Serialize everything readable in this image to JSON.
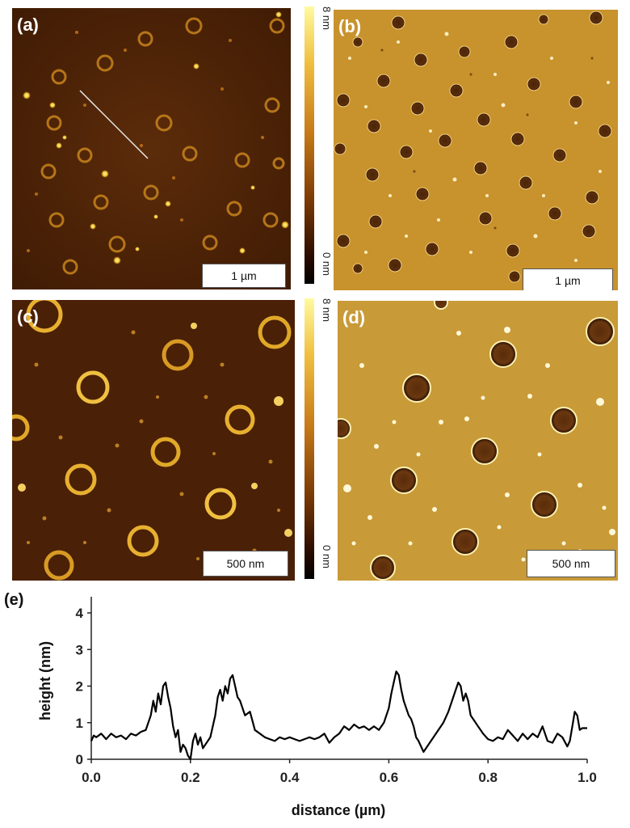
{
  "panels": {
    "a": {
      "label": "(a)",
      "scalebar": "1 µm"
    },
    "b": {
      "label": "(b)",
      "scalebar": "1 µm"
    },
    "c": {
      "label": "(c)",
      "scalebar": "500 nm"
    },
    "d": {
      "label": "(d)",
      "scalebar": "500 nm"
    }
  },
  "colorbars": {
    "top": {
      "max_label": "8 nm",
      "min_label": "0 nm"
    },
    "bottom": {
      "max_label": "8 nm",
      "min_label": "0 nm"
    }
  },
  "colors": {
    "height_map_bg": "#5a2a08",
    "amplitude_bg": "#c8922c",
    "line": "#000000"
  },
  "chart_data": {
    "type": "line",
    "panel_label": "(e)",
    "xlabel": "distance (µm)",
    "ylabel": "height (nm)",
    "xlim": [
      0,
      1.0
    ],
    "ylim": [
      0,
      4
    ],
    "xticks": [
      "0.0",
      "0.2",
      "0.4",
      "0.6",
      "0.8",
      "1.0"
    ],
    "yticks": [
      "0",
      "1",
      "2",
      "3",
      "4"
    ],
    "grid": false,
    "series": [
      {
        "x": [
          0.0,
          0.005,
          0.01,
          0.02,
          0.03,
          0.04,
          0.05,
          0.06,
          0.07,
          0.08,
          0.09,
          0.1,
          0.11,
          0.12,
          0.125,
          0.13,
          0.135,
          0.14,
          0.145,
          0.15,
          0.155,
          0.16,
          0.165,
          0.17,
          0.175,
          0.18,
          0.185,
          0.19,
          0.195,
          0.2,
          0.205,
          0.21,
          0.215,
          0.22,
          0.225,
          0.23,
          0.24,
          0.25,
          0.255,
          0.26,
          0.265,
          0.27,
          0.275,
          0.28,
          0.285,
          0.29,
          0.295,
          0.3,
          0.31,
          0.32,
          0.33,
          0.34,
          0.35,
          0.36,
          0.37,
          0.38,
          0.39,
          0.4,
          0.41,
          0.42,
          0.43,
          0.44,
          0.45,
          0.46,
          0.47,
          0.48,
          0.49,
          0.5,
          0.51,
          0.52,
          0.53,
          0.54,
          0.55,
          0.56,
          0.57,
          0.58,
          0.59,
          0.6,
          0.605,
          0.61,
          0.615,
          0.62,
          0.625,
          0.63,
          0.635,
          0.64,
          0.645,
          0.65,
          0.655,
          0.66,
          0.67,
          0.68,
          0.69,
          0.7,
          0.71,
          0.72,
          0.73,
          0.735,
          0.74,
          0.745,
          0.75,
          0.755,
          0.76,
          0.765,
          0.77,
          0.78,
          0.79,
          0.8,
          0.81,
          0.82,
          0.83,
          0.84,
          0.85,
          0.86,
          0.87,
          0.88,
          0.89,
          0.9,
          0.91,
          0.92,
          0.93,
          0.94,
          0.95,
          0.96,
          0.965,
          0.97,
          0.975,
          0.98,
          0.985,
          0.99,
          1.0
        ],
        "y": [
          0.5,
          0.65,
          0.6,
          0.7,
          0.55,
          0.7,
          0.6,
          0.65,
          0.55,
          0.7,
          0.65,
          0.75,
          0.8,
          1.2,
          1.6,
          1.3,
          1.8,
          1.5,
          2.0,
          2.1,
          1.7,
          1.4,
          0.9,
          0.6,
          0.8,
          0.2,
          0.4,
          0.3,
          0.1,
          0.0,
          0.5,
          0.7,
          0.4,
          0.6,
          0.3,
          0.4,
          0.6,
          1.2,
          1.7,
          1.9,
          1.6,
          2.0,
          1.8,
          2.2,
          2.3,
          2.0,
          1.7,
          1.6,
          1.2,
          1.3,
          0.8,
          0.7,
          0.6,
          0.55,
          0.5,
          0.6,
          0.55,
          0.6,
          0.55,
          0.5,
          0.55,
          0.6,
          0.55,
          0.6,
          0.7,
          0.45,
          0.6,
          0.7,
          0.9,
          0.8,
          0.95,
          0.85,
          0.9,
          0.8,
          0.9,
          0.8,
          1.0,
          1.4,
          1.8,
          2.1,
          2.4,
          2.3,
          1.9,
          1.6,
          1.4,
          1.2,
          1.1,
          0.9,
          0.6,
          0.5,
          0.2,
          0.4,
          0.6,
          0.8,
          1.0,
          1.3,
          1.7,
          1.9,
          2.1,
          2.0,
          1.6,
          1.8,
          1.6,
          1.2,
          1.1,
          0.9,
          0.7,
          0.55,
          0.5,
          0.6,
          0.55,
          0.8,
          0.65,
          0.5,
          0.7,
          0.55,
          0.7,
          0.6,
          0.9,
          0.5,
          0.45,
          0.7,
          0.6,
          0.35,
          0.5,
          0.9,
          1.3,
          1.2,
          0.8,
          0.85,
          0.85
        ]
      }
    ]
  }
}
